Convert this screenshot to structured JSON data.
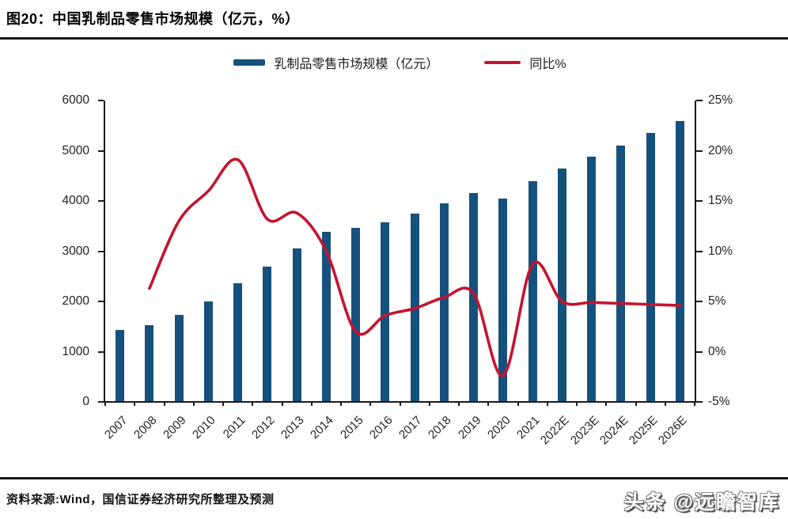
{
  "header": {
    "title": "图20：中国乳制品零售市场规模（亿元，%）"
  },
  "footer": {
    "source": "资料来源:Wind，国信证券经济研究所整理及预测",
    "watermark": "头条 @远瞻智库"
  },
  "colors": {
    "bar": "#15517C",
    "line": "#C4142E",
    "axis": "#1a1a1a",
    "divider": "#15151d"
  },
  "chart_data": {
    "type": "combo (bar + line, dual axis)",
    "title": "图20：中国乳制品零售市场规模（亿元，%）",
    "categories": [
      "2007",
      "2008",
      "2009",
      "2010",
      "2011",
      "2012",
      "2013",
      "2014",
      "2015",
      "2016",
      "2017",
      "2018",
      "2019",
      "2020",
      "2021",
      "2022E",
      "2023E",
      "2024E",
      "2025E",
      "2026E"
    ],
    "series": [
      {
        "name": "乳制品零售市场规模（亿元）",
        "type": "bar",
        "yaxis": "left",
        "color": "#15517C",
        "values": [
          1430,
          1530,
          1730,
          2000,
          2370,
          2700,
          3050,
          3390,
          3460,
          3580,
          3750,
          3950,
          4150,
          4050,
          4400,
          4650,
          4880,
          5100,
          5350,
          5590
        ]
      },
      {
        "name": "同比%",
        "type": "line",
        "yaxis": "right",
        "color": "#C4142E",
        "values": [
          null,
          6.3,
          13.0,
          16.0,
          19.1,
          13.2,
          13.8,
          10.0,
          2.0,
          3.6,
          4.3,
          5.4,
          5.8,
          -2.4,
          8.7,
          5.0,
          4.9,
          4.8,
          4.7,
          4.6
        ]
      }
    ],
    "left_axis": {
      "min": 0,
      "max": 6000,
      "step": 1000,
      "tick_labels": [
        "0",
        "1000",
        "2000",
        "3000",
        "4000",
        "5000",
        "6000"
      ]
    },
    "right_axis": {
      "min": -5,
      "max": 25,
      "step": 5,
      "tick_labels": [
        "-5%",
        "0%",
        "5%",
        "10%",
        "15%",
        "20%",
        "25%"
      ]
    },
    "legend_position": "top",
    "grid": false,
    "x_label_rotation_deg": 45
  }
}
